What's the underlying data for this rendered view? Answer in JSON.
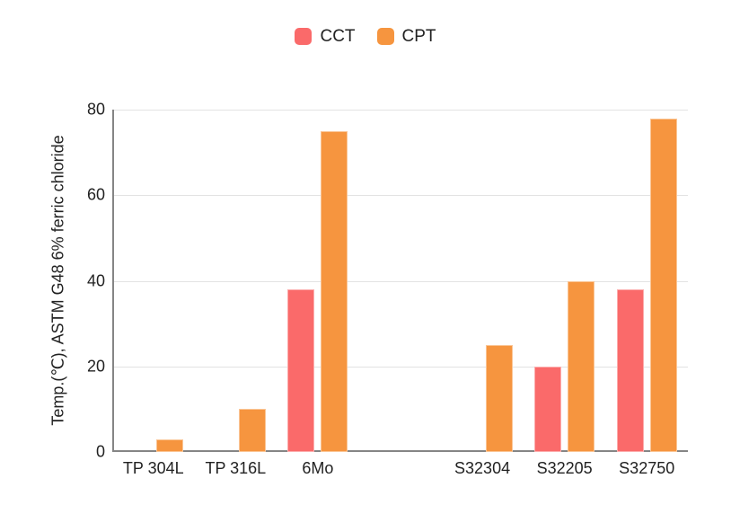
{
  "legend": {
    "items": [
      {
        "label": "CCT",
        "color": "#fa6a6a"
      },
      {
        "label": "CPT",
        "color": "#f6953f"
      }
    ]
  },
  "chart_data": {
    "type": "bar",
    "title": "",
    "ylabel": "Temp.(℃), ASTM G48 6% ferric chloride",
    "xlabel": "",
    "categories": [
      "TP 304L",
      "TP 316L",
      "6Mo",
      "",
      "S32304",
      "S32205",
      "S32750"
    ],
    "series": [
      {
        "name": "CCT",
        "color": "#fa6a6a",
        "values": [
          null,
          null,
          38,
          null,
          null,
          20,
          38
        ]
      },
      {
        "name": "CPT",
        "color": "#f6953f",
        "values": [
          3,
          10,
          75,
          null,
          25,
          40,
          78
        ]
      }
    ],
    "ylim": [
      0,
      80
    ],
    "yticks": [
      0,
      20,
      40,
      60,
      80
    ],
    "grid": true,
    "legend_position": "top",
    "colors": {
      "axis": "#858585",
      "gridline": "#e3e3e3",
      "text": "#222222",
      "background": "#ffffff"
    }
  }
}
